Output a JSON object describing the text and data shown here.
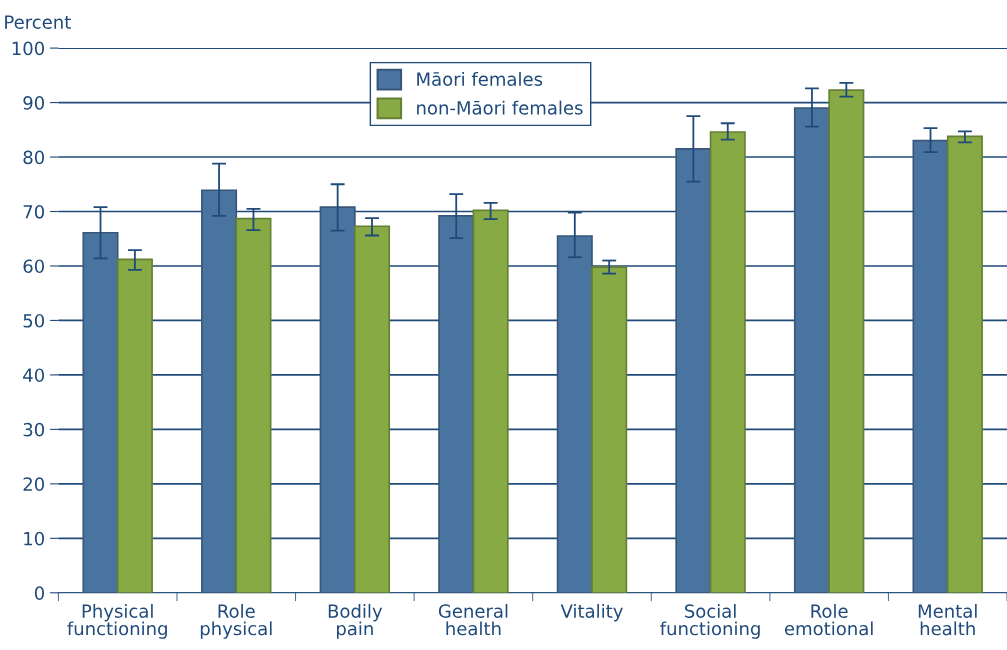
{
  "chart_data": {
    "type": "bar",
    "ylabel": "Percent",
    "categories": [
      "Physical\nfunctioning",
      "Role\nphysical",
      "Bodily\npain",
      "General\nhealth",
      "Vitality",
      "Social\nfunctioning",
      "Role\nemotional",
      "Mental\nhealth"
    ],
    "series": [
      {
        "name": "Māori females",
        "color": "#4a74a0",
        "values": [
          66.1,
          73.9,
          70.8,
          69.2,
          65.5,
          81.5,
          89.0,
          83.0
        ],
        "errors": [
          [
            61.4,
            70.8
          ],
          [
            69.2,
            78.8
          ],
          [
            66.5,
            75.0
          ],
          [
            65.1,
            73.2
          ],
          [
            61.6,
            69.8
          ],
          [
            75.5,
            87.5
          ],
          [
            85.6,
            92.6
          ],
          [
            80.9,
            85.3
          ]
        ]
      },
      {
        "name": "non-Māori females",
        "color": "#87aa45",
        "values": [
          61.2,
          68.7,
          67.3,
          70.2,
          59.8,
          84.6,
          92.3,
          83.8
        ],
        "errors": [
          [
            59.3,
            62.9
          ],
          [
            66.6,
            70.5
          ],
          [
            65.6,
            68.8
          ],
          [
            68.6,
            71.6
          ],
          [
            58.6,
            61.0
          ],
          [
            83.2,
            86.2
          ],
          [
            91.1,
            93.6
          ],
          [
            82.7,
            84.7
          ]
        ]
      }
    ],
    "ylim": [
      0,
      100
    ],
    "yticks": [
      0,
      10,
      20,
      30,
      40,
      50,
      60,
      70,
      80,
      90,
      100
    ],
    "grid": "y",
    "legend": "top"
  }
}
